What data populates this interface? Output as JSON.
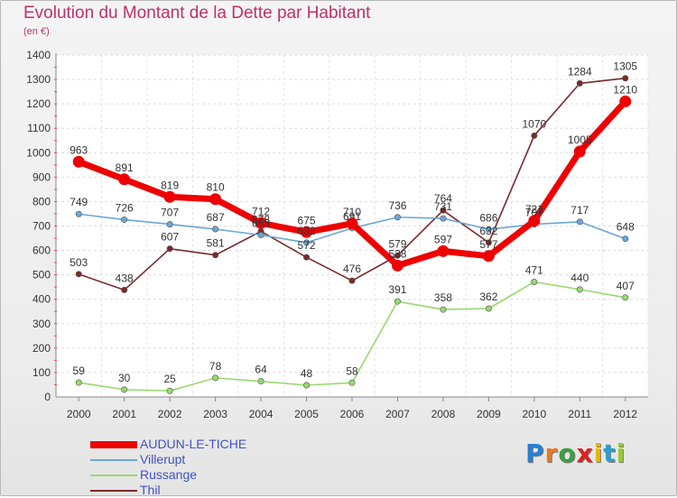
{
  "chart_data": {
    "type": "line",
    "title": "Evolution du Montant de la Dette par Habitant",
    "subtitle": "(en €)",
    "xlabel": "",
    "ylabel": "",
    "categories": [
      "2000",
      "2001",
      "2002",
      "2003",
      "2004",
      "2005",
      "2006",
      "2007",
      "2008",
      "2009",
      "2010",
      "2011",
      "2012"
    ],
    "ylim": [
      0,
      1400
    ],
    "yticks": [
      0,
      100,
      200,
      300,
      400,
      500,
      600,
      700,
      800,
      900,
      1000,
      1100,
      1200,
      1300,
      1400
    ],
    "grid": true,
    "legend_position": "bottom-left",
    "series": [
      {
        "name": "Thil",
        "color": "#7a2a2a",
        "emphasis": false,
        "values": [
          503,
          438,
          607,
          581,
          678,
          572,
          476,
          579,
          764,
          632,
          1070,
          1284,
          1305
        ]
      },
      {
        "name": "Russange",
        "color": "#98d870",
        "emphasis": false,
        "values": [
          59,
          30,
          25,
          78,
          64,
          48,
          58,
          391,
          358,
          362,
          471,
          440,
          407
        ]
      },
      {
        "name": "Villerupt",
        "color": "#6aa6d8",
        "emphasis": false,
        "values": [
          749,
          726,
          707,
          687,
          663,
          632,
          691,
          736,
          731,
          686,
          707,
          717,
          648
        ]
      },
      {
        "name": "AUDUN-LE-TICHE",
        "color": "#ee0000",
        "emphasis": true,
        "values": [
          963,
          891,
          819,
          810,
          712,
          675,
          710,
          538,
          597,
          577,
          721,
          1005,
          1210
        ]
      }
    ],
    "legend_order": [
      "AUDUN-LE-TICHE",
      "Villerupt",
      "Russange",
      "Thil"
    ],
    "logo": {
      "letters": [
        "P",
        "r",
        "o",
        "x",
        "i",
        "t",
        "i"
      ],
      "colors": [
        "#2a7fd0",
        "#e87a20",
        "#3aa040",
        "#e02020",
        "#e8b800",
        "#2a9fd0",
        "#9aca30"
      ]
    }
  }
}
